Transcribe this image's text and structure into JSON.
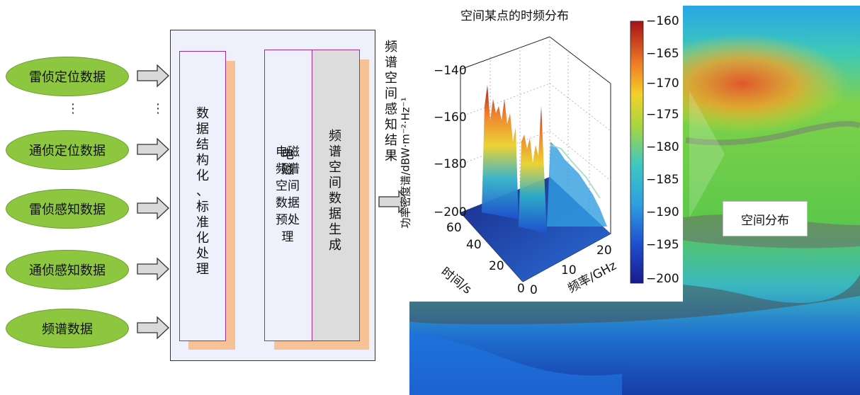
{
  "inputs": [
    "雷侦定位数据",
    "通侦定位数据",
    "雷侦感知数据",
    "通侦感知数据",
    "频谱数据"
  ],
  "dots": "⋮",
  "stage1": [
    "数",
    "据",
    "结",
    "构",
    "化",
    "、",
    "标",
    "准",
    "化",
    "处",
    "理"
  ],
  "stage2": [
    "电",
    "磁",
    "频",
    "谱",
    "空",
    "间",
    "数",
    "据",
    "预",
    "处",
    "理"
  ],
  "stage3": [
    "频",
    "谱",
    "空",
    "间",
    "数",
    "据",
    "生",
    "成"
  ],
  "output_label": [
    "频",
    "谱",
    "空",
    "间",
    "感",
    "知",
    "结",
    "果"
  ],
  "plot": {
    "title": "空间某点的时频分布",
    "zlabel": "功率密度谱/dBW·m⁻²·Hz⁻¹",
    "xlabel": "频率/GHz",
    "ylabel": "时间/s",
    "z_ticks": [
      "−140",
      "−160",
      "−180",
      "−200"
    ],
    "time_ticks": [
      "60",
      "40",
      "20",
      "0"
    ],
    "freq_ticks": [
      "0",
      "10",
      "20"
    ],
    "colorbar_ticks": [
      "−160",
      "−165",
      "−170",
      "−175",
      "−180",
      "−185",
      "−190",
      "−195",
      "−200"
    ]
  },
  "map_label": "空间分布",
  "colors": {
    "oval": "#8dc63f",
    "panel_border": "#9a2f8f",
    "shadow": "#f7c396",
    "box_bg": "#eef0fb"
  }
}
